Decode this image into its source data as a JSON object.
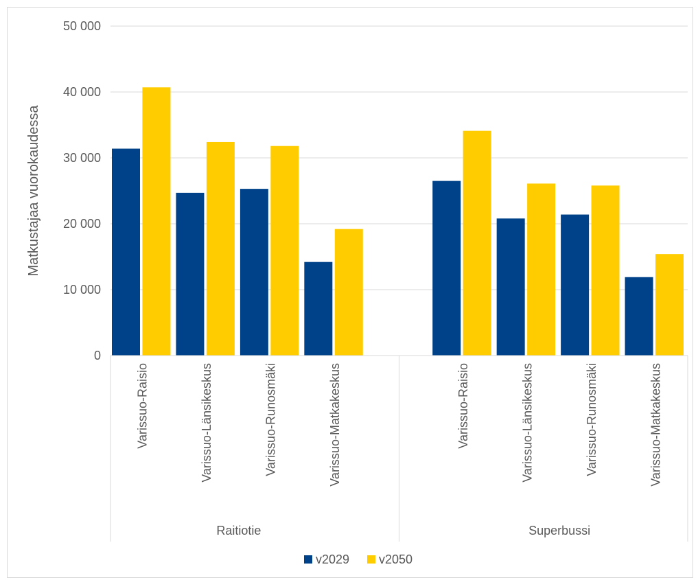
{
  "chart_data": {
    "type": "bar",
    "title": "",
    "xlabel": "",
    "ylabel": "Matkustajaa vuorokaudessa",
    "ylim": [
      0,
      50000
    ],
    "yticks": [
      {
        "value": 0,
        "label": "0"
      },
      {
        "value": 10000,
        "label": "10 000"
      },
      {
        "value": 20000,
        "label": "20 000"
      },
      {
        "value": 30000,
        "label": "30 000"
      },
      {
        "value": 40000,
        "label": "40 000"
      },
      {
        "value": 50000,
        "label": "50 000"
      }
    ],
    "grid": true,
    "legend_position": "bottom",
    "groups": [
      {
        "name": "Raitiotie",
        "categories": [
          "Varissuo-Raisio",
          "Varissuo-Länsikeskus",
          "Varissuo-Runosmäki",
          "Varissuo-Matkakeskus"
        ]
      },
      {
        "name": "Superbussi",
        "categories": [
          "Varissuo-Raisio",
          "Varissuo-Länsikeskus",
          "Varissuo-Runosmäki",
          "Varissuo-Matkakeskus"
        ]
      }
    ],
    "series": [
      {
        "name": "v2029",
        "color": "#004289",
        "values": [
          31400,
          24700,
          25300,
          14200,
          26500,
          20800,
          21400,
          11900
        ]
      },
      {
        "name": "v2050",
        "color": "#ffcc00",
        "values": [
          40700,
          32400,
          31800,
          19200,
          34100,
          26100,
          25800,
          15400
        ]
      }
    ]
  }
}
